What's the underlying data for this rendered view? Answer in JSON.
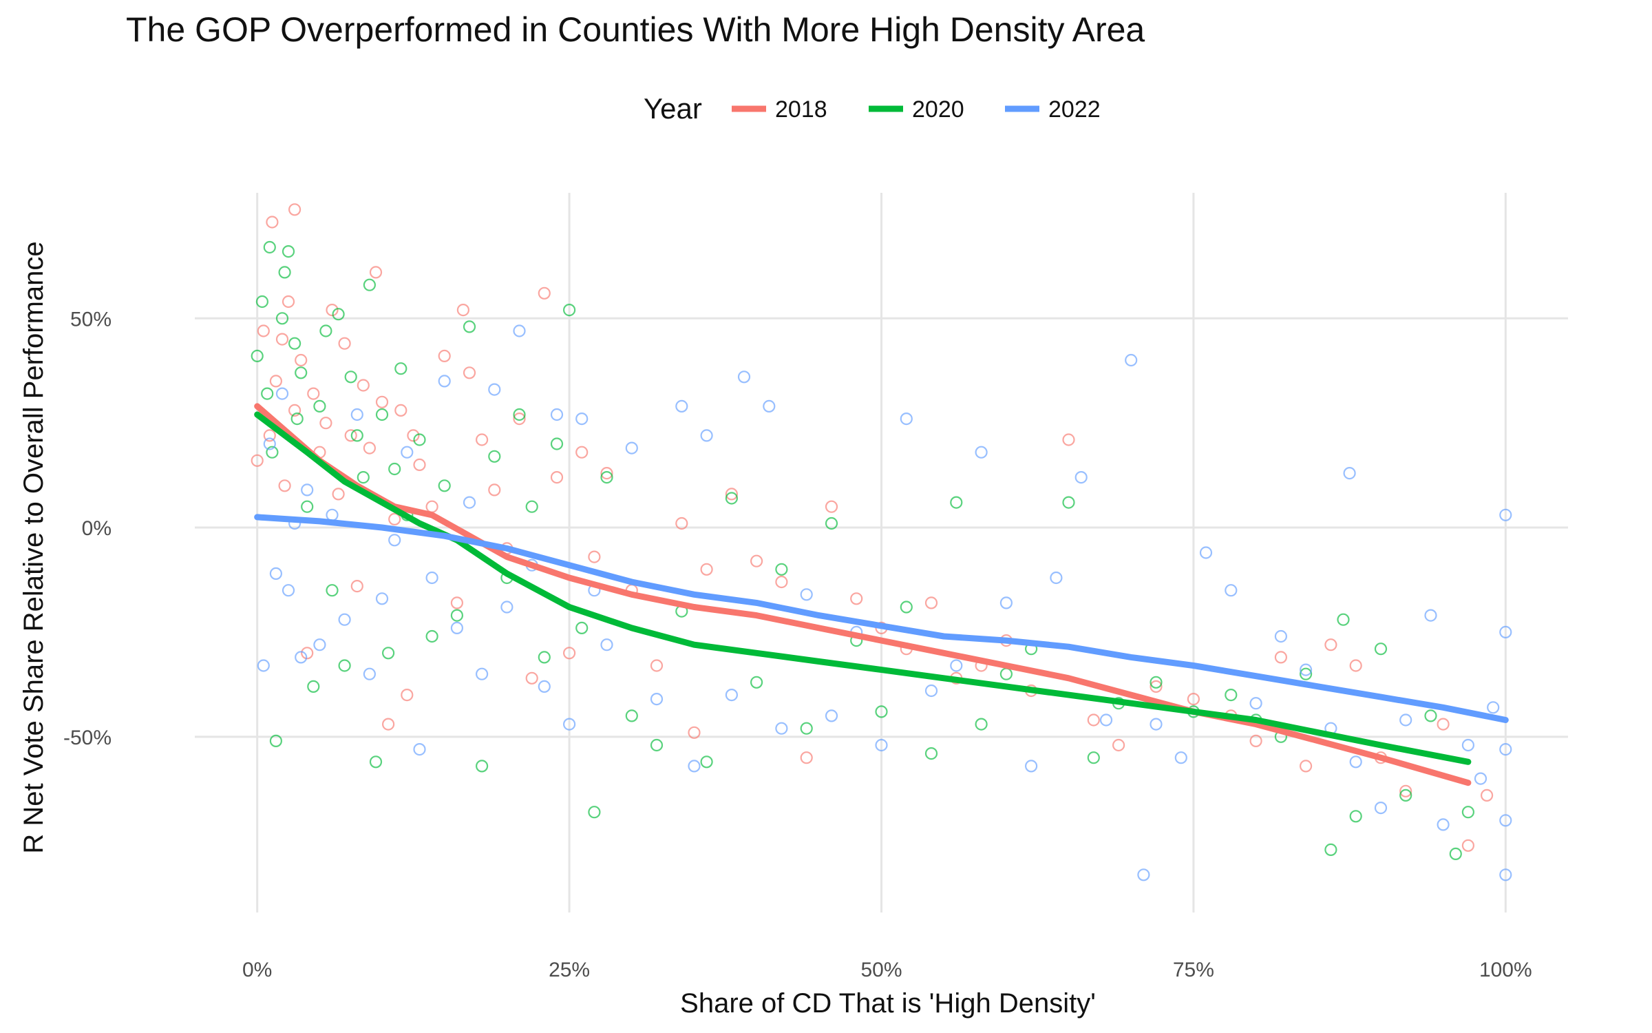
{
  "chart_data": {
    "type": "scatter",
    "title": "The GOP Overperformed in Counties With More High Density Area",
    "xlabel": "Share of CD That is 'High Density'",
    "ylabel": "R Net Vote Share Relative to Overall Performance",
    "xlim": [
      -0.05,
      1.05
    ],
    "ylim": [
      -0.92,
      0.8
    ],
    "x_ticks": [
      0,
      0.25,
      0.5,
      0.75,
      1.0
    ],
    "x_tick_labels": [
      "0%",
      "25%",
      "50%",
      "75%",
      "100%"
    ],
    "y_ticks": [
      0.5,
      0,
      -0.5
    ],
    "y_tick_labels": [
      "50%",
      "0%",
      "-50%"
    ],
    "grid": true,
    "legend": {
      "title": "Year",
      "position": "top"
    },
    "series": [
      {
        "name": "2018",
        "color": "#F8766D",
        "smooth": [
          [
            0.0,
            0.29
          ],
          [
            0.05,
            0.16
          ],
          [
            0.08,
            0.1
          ],
          [
            0.11,
            0.05
          ],
          [
            0.14,
            0.03
          ],
          [
            0.17,
            -0.02
          ],
          [
            0.2,
            -0.07
          ],
          [
            0.25,
            -0.12
          ],
          [
            0.3,
            -0.16
          ],
          [
            0.35,
            -0.19
          ],
          [
            0.4,
            -0.21
          ],
          [
            0.45,
            -0.24
          ],
          [
            0.5,
            -0.27
          ],
          [
            0.55,
            -0.3
          ],
          [
            0.6,
            -0.33
          ],
          [
            0.65,
            -0.36
          ],
          [
            0.7,
            -0.4
          ],
          [
            0.75,
            -0.44
          ],
          [
            0.8,
            -0.47
          ],
          [
            0.85,
            -0.51
          ],
          [
            0.9,
            -0.55
          ],
          [
            0.97,
            -0.61
          ]
        ],
        "points": [
          [
            0.0,
            0.16
          ],
          [
            0.005,
            0.47
          ],
          [
            0.01,
            0.22
          ],
          [
            0.012,
            0.73
          ],
          [
            0.015,
            0.35
          ],
          [
            0.02,
            0.45
          ],
          [
            0.022,
            0.1
          ],
          [
            0.025,
            0.54
          ],
          [
            0.03,
            0.76
          ],
          [
            0.03,
            0.28
          ],
          [
            0.035,
            0.4
          ],
          [
            0.04,
            -0.3
          ],
          [
            0.045,
            0.32
          ],
          [
            0.05,
            0.18
          ],
          [
            0.055,
            0.25
          ],
          [
            0.06,
            0.52
          ],
          [
            0.065,
            0.08
          ],
          [
            0.07,
            0.44
          ],
          [
            0.075,
            0.22
          ],
          [
            0.08,
            -0.14
          ],
          [
            0.085,
            0.34
          ],
          [
            0.09,
            0.19
          ],
          [
            0.095,
            0.61
          ],
          [
            0.1,
            0.3
          ],
          [
            0.105,
            -0.47
          ],
          [
            0.11,
            0.02
          ],
          [
            0.115,
            0.28
          ],
          [
            0.12,
            -0.4
          ],
          [
            0.125,
            0.22
          ],
          [
            0.13,
            0.15
          ],
          [
            0.14,
            0.05
          ],
          [
            0.15,
            0.41
          ],
          [
            0.16,
            -0.18
          ],
          [
            0.165,
            0.52
          ],
          [
            0.17,
            0.37
          ],
          [
            0.18,
            0.21
          ],
          [
            0.19,
            0.09
          ],
          [
            0.2,
            -0.05
          ],
          [
            0.21,
            0.26
          ],
          [
            0.22,
            -0.36
          ],
          [
            0.23,
            0.56
          ],
          [
            0.24,
            0.12
          ],
          [
            0.25,
            -0.3
          ],
          [
            0.26,
            0.18
          ],
          [
            0.27,
            -0.07
          ],
          [
            0.28,
            0.13
          ],
          [
            0.3,
            -0.15
          ],
          [
            0.32,
            -0.33
          ],
          [
            0.34,
            0.01
          ],
          [
            0.35,
            -0.49
          ],
          [
            0.36,
            -0.1
          ],
          [
            0.38,
            0.08
          ],
          [
            0.4,
            -0.08
          ],
          [
            0.42,
            -0.13
          ],
          [
            0.44,
            -0.55
          ],
          [
            0.46,
            0.05
          ],
          [
            0.48,
            -0.17
          ],
          [
            0.5,
            -0.24
          ],
          [
            0.52,
            -0.29
          ],
          [
            0.54,
            -0.18
          ],
          [
            0.56,
            -0.36
          ],
          [
            0.58,
            -0.33
          ],
          [
            0.6,
            -0.27
          ],
          [
            0.62,
            -0.39
          ],
          [
            0.65,
            0.21
          ],
          [
            0.67,
            -0.46
          ],
          [
            0.69,
            -0.52
          ],
          [
            0.72,
            -0.38
          ],
          [
            0.75,
            -0.41
          ],
          [
            0.78,
            -0.45
          ],
          [
            0.8,
            -0.51
          ],
          [
            0.82,
            -0.31
          ],
          [
            0.84,
            -0.57
          ],
          [
            0.86,
            -0.28
          ],
          [
            0.88,
            -0.33
          ],
          [
            0.9,
            -0.55
          ],
          [
            0.92,
            -0.63
          ],
          [
            0.95,
            -0.47
          ],
          [
            0.97,
            -0.76
          ],
          [
            0.985,
            -0.64
          ]
        ]
      },
      {
        "name": "2020",
        "color": "#00BA38",
        "smooth": [
          [
            0.0,
            0.27
          ],
          [
            0.04,
            0.18
          ],
          [
            0.07,
            0.11
          ],
          [
            0.1,
            0.06
          ],
          [
            0.13,
            0.01
          ],
          [
            0.16,
            -0.03
          ],
          [
            0.2,
            -0.11
          ],
          [
            0.25,
            -0.19
          ],
          [
            0.3,
            -0.24
          ],
          [
            0.35,
            -0.28
          ],
          [
            0.4,
            -0.3
          ],
          [
            0.45,
            -0.32
          ],
          [
            0.5,
            -0.34
          ],
          [
            0.55,
            -0.36
          ],
          [
            0.6,
            -0.38
          ],
          [
            0.65,
            -0.4
          ],
          [
            0.7,
            -0.42
          ],
          [
            0.75,
            -0.44
          ],
          [
            0.8,
            -0.46
          ],
          [
            0.85,
            -0.49
          ],
          [
            0.9,
            -0.52
          ],
          [
            0.97,
            -0.56
          ]
        ],
        "points": [
          [
            0.0,
            0.41
          ],
          [
            0.004,
            0.54
          ],
          [
            0.008,
            0.32
          ],
          [
            0.01,
            0.67
          ],
          [
            0.012,
            0.18
          ],
          [
            0.015,
            -0.51
          ],
          [
            0.02,
            0.5
          ],
          [
            0.022,
            0.61
          ],
          [
            0.025,
            0.66
          ],
          [
            0.03,
            0.44
          ],
          [
            0.032,
            0.26
          ],
          [
            0.035,
            0.37
          ],
          [
            0.04,
            0.05
          ],
          [
            0.045,
            -0.38
          ],
          [
            0.05,
            0.29
          ],
          [
            0.055,
            0.47
          ],
          [
            0.06,
            -0.15
          ],
          [
            0.065,
            0.51
          ],
          [
            0.07,
            -0.33
          ],
          [
            0.075,
            0.36
          ],
          [
            0.08,
            0.22
          ],
          [
            0.085,
            0.12
          ],
          [
            0.09,
            0.58
          ],
          [
            0.095,
            -0.56
          ],
          [
            0.1,
            0.27
          ],
          [
            0.105,
            -0.3
          ],
          [
            0.11,
            0.14
          ],
          [
            0.115,
            0.38
          ],
          [
            0.12,
            0.03
          ],
          [
            0.13,
            0.21
          ],
          [
            0.14,
            -0.26
          ],
          [
            0.15,
            0.1
          ],
          [
            0.16,
            -0.21
          ],
          [
            0.17,
            0.48
          ],
          [
            0.18,
            -0.57
          ],
          [
            0.19,
            0.17
          ],
          [
            0.2,
            -0.12
          ],
          [
            0.21,
            0.27
          ],
          [
            0.22,
            0.05
          ],
          [
            0.23,
            -0.31
          ],
          [
            0.24,
            0.2
          ],
          [
            0.25,
            0.52
          ],
          [
            0.26,
            -0.24
          ],
          [
            0.27,
            -0.68
          ],
          [
            0.28,
            0.12
          ],
          [
            0.3,
            -0.45
          ],
          [
            0.32,
            -0.52
          ],
          [
            0.34,
            -0.2
          ],
          [
            0.36,
            -0.56
          ],
          [
            0.38,
            0.07
          ],
          [
            0.4,
            -0.37
          ],
          [
            0.42,
            -0.1
          ],
          [
            0.44,
            -0.48
          ],
          [
            0.46,
            0.01
          ],
          [
            0.48,
            -0.27
          ],
          [
            0.5,
            -0.44
          ],
          [
            0.52,
            -0.19
          ],
          [
            0.54,
            -0.54
          ],
          [
            0.56,
            0.06
          ],
          [
            0.58,
            -0.47
          ],
          [
            0.6,
            -0.35
          ],
          [
            0.62,
            -0.29
          ],
          [
            0.65,
            0.06
          ],
          [
            0.67,
            -0.55
          ],
          [
            0.69,
            -0.42
          ],
          [
            0.72,
            -0.37
          ],
          [
            0.75,
            -0.44
          ],
          [
            0.78,
            -0.4
          ],
          [
            0.8,
            -0.46
          ],
          [
            0.82,
            -0.5
          ],
          [
            0.84,
            -0.35
          ],
          [
            0.86,
            -0.77
          ],
          [
            0.87,
            -0.22
          ],
          [
            0.88,
            -0.69
          ],
          [
            0.9,
            -0.29
          ],
          [
            0.92,
            -0.64
          ],
          [
            0.94,
            -0.45
          ],
          [
            0.96,
            -0.78
          ],
          [
            0.97,
            -0.68
          ]
        ]
      },
      {
        "name": "2022",
        "color": "#619CFF",
        "smooth": [
          [
            0.0,
            0.025
          ],
          [
            0.05,
            0.015
          ],
          [
            0.1,
            0.0
          ],
          [
            0.15,
            -0.02
          ],
          [
            0.2,
            -0.05
          ],
          [
            0.25,
            -0.09
          ],
          [
            0.3,
            -0.13
          ],
          [
            0.35,
            -0.16
          ],
          [
            0.4,
            -0.18
          ],
          [
            0.45,
            -0.21
          ],
          [
            0.5,
            -0.235
          ],
          [
            0.55,
            -0.26
          ],
          [
            0.6,
            -0.27
          ],
          [
            0.65,
            -0.285
          ],
          [
            0.7,
            -0.31
          ],
          [
            0.75,
            -0.33
          ],
          [
            0.8,
            -0.355
          ],
          [
            0.85,
            -0.38
          ],
          [
            0.9,
            -0.405
          ],
          [
            0.95,
            -0.43
          ],
          [
            1.0,
            -0.46
          ]
        ],
        "points": [
          [
            0.005,
            -0.33
          ],
          [
            0.01,
            0.2
          ],
          [
            0.015,
            -0.11
          ],
          [
            0.02,
            0.32
          ],
          [
            0.025,
            -0.15
          ],
          [
            0.03,
            0.01
          ],
          [
            0.035,
            -0.31
          ],
          [
            0.04,
            0.09
          ],
          [
            0.05,
            -0.28
          ],
          [
            0.06,
            0.03
          ],
          [
            0.07,
            -0.22
          ],
          [
            0.08,
            0.27
          ],
          [
            0.09,
            -0.35
          ],
          [
            0.1,
            -0.17
          ],
          [
            0.11,
            -0.03
          ],
          [
            0.12,
            0.18
          ],
          [
            0.13,
            -0.53
          ],
          [
            0.14,
            -0.12
          ],
          [
            0.15,
            0.35
          ],
          [
            0.16,
            -0.24
          ],
          [
            0.17,
            0.06
          ],
          [
            0.18,
            -0.35
          ],
          [
            0.19,
            0.33
          ],
          [
            0.2,
            -0.19
          ],
          [
            0.21,
            0.47
          ],
          [
            0.22,
            -0.09
          ],
          [
            0.23,
            -0.38
          ],
          [
            0.24,
            0.27
          ],
          [
            0.25,
            -0.47
          ],
          [
            0.26,
            0.26
          ],
          [
            0.27,
            -0.15
          ],
          [
            0.28,
            -0.28
          ],
          [
            0.3,
            0.19
          ],
          [
            0.32,
            -0.41
          ],
          [
            0.34,
            0.29
          ],
          [
            0.35,
            -0.57
          ],
          [
            0.36,
            0.22
          ],
          [
            0.38,
            -0.4
          ],
          [
            0.39,
            0.36
          ],
          [
            0.41,
            0.29
          ],
          [
            0.42,
            -0.48
          ],
          [
            0.44,
            -0.16
          ],
          [
            0.46,
            -0.45
          ],
          [
            0.48,
            -0.25
          ],
          [
            0.5,
            -0.52
          ],
          [
            0.52,
            0.26
          ],
          [
            0.54,
            -0.39
          ],
          [
            0.56,
            -0.33
          ],
          [
            0.58,
            0.18
          ],
          [
            0.6,
            -0.18
          ],
          [
            0.62,
            -0.57
          ],
          [
            0.64,
            -0.12
          ],
          [
            0.66,
            0.12
          ],
          [
            0.68,
            -0.46
          ],
          [
            0.7,
            0.4
          ],
          [
            0.71,
            -0.83
          ],
          [
            0.72,
            -0.47
          ],
          [
            0.74,
            -0.55
          ],
          [
            0.76,
            -0.06
          ],
          [
            0.78,
            -0.15
          ],
          [
            0.8,
            -0.42
          ],
          [
            0.82,
            -0.26
          ],
          [
            0.84,
            -0.34
          ],
          [
            0.86,
            -0.48
          ],
          [
            0.875,
            0.13
          ],
          [
            0.88,
            -0.56
          ],
          [
            0.9,
            -0.67
          ],
          [
            0.92,
            -0.46
          ],
          [
            0.94,
            -0.21
          ],
          [
            0.95,
            -0.71
          ],
          [
            0.97,
            -0.52
          ],
          [
            0.98,
            -0.6
          ],
          [
            0.99,
            -0.43
          ],
          [
            1.0,
            0.03
          ],
          [
            1.0,
            -0.25
          ],
          [
            1.0,
            -0.53
          ],
          [
            1.0,
            -0.7
          ],
          [
            1.0,
            -0.83
          ]
        ]
      }
    ]
  }
}
